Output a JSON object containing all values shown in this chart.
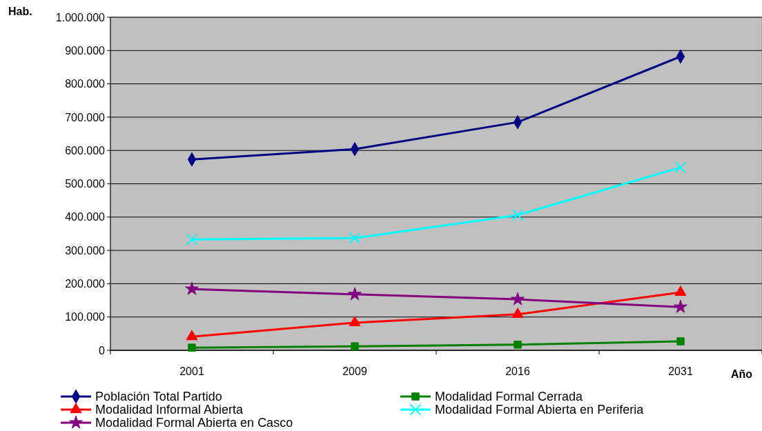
{
  "chart_data": {
    "type": "line",
    "xlabel": "Año",
    "ylabel": "Hab.",
    "categories": [
      "2001",
      "2009",
      "2016",
      "2031"
    ],
    "ylim": [
      0,
      1000000
    ],
    "yticks": [
      0,
      {
        "value": 100000,
        "label": "100.000"
      },
      {
        "value": 200000,
        "label": "200.000"
      },
      {
        "value": 300000,
        "label": "300.000"
      },
      {
        "value": 400000,
        "label": "400.000"
      },
      {
        "value": 500000,
        "label": "500.000"
      },
      {
        "value": 600000,
        "label": "600.000"
      },
      {
        "value": 700000,
        "label": "700.000"
      },
      {
        "value": 800000,
        "label": "800.000"
      },
      {
        "value": 900000,
        "label": "900.000"
      },
      {
        "value": 1000000,
        "label": "1.000.000"
      }
    ],
    "grid": "y",
    "legend": "bottom",
    "line_style": "solid",
    "series": [
      {
        "name": "Población Total Partido",
        "color": "#000080",
        "marker": "diamond",
        "values": [
          573000,
          604000,
          685000,
          882000
        ]
      },
      {
        "name": "Modalidad Formal Cerrada",
        "color": "#008000",
        "marker": "square",
        "values": [
          8000,
          12000,
          17000,
          27000
        ]
      },
      {
        "name": "Modalidad Informal Abierta",
        "color": "#ff0000",
        "marker": "triangle",
        "values": [
          41000,
          83000,
          108000,
          174000
        ]
      },
      {
        "name": "Modalidad Formal Abierta en Periferia",
        "color": "#00ffff",
        "marker": "cross",
        "values": [
          333000,
          337000,
          406000,
          549000
        ]
      },
      {
        "name": "Modalidad Formal Abierta en Casco",
        "color": "#800080",
        "marker": "star",
        "values": [
          184000,
          168000,
          153000,
          130000
        ]
      }
    ]
  }
}
